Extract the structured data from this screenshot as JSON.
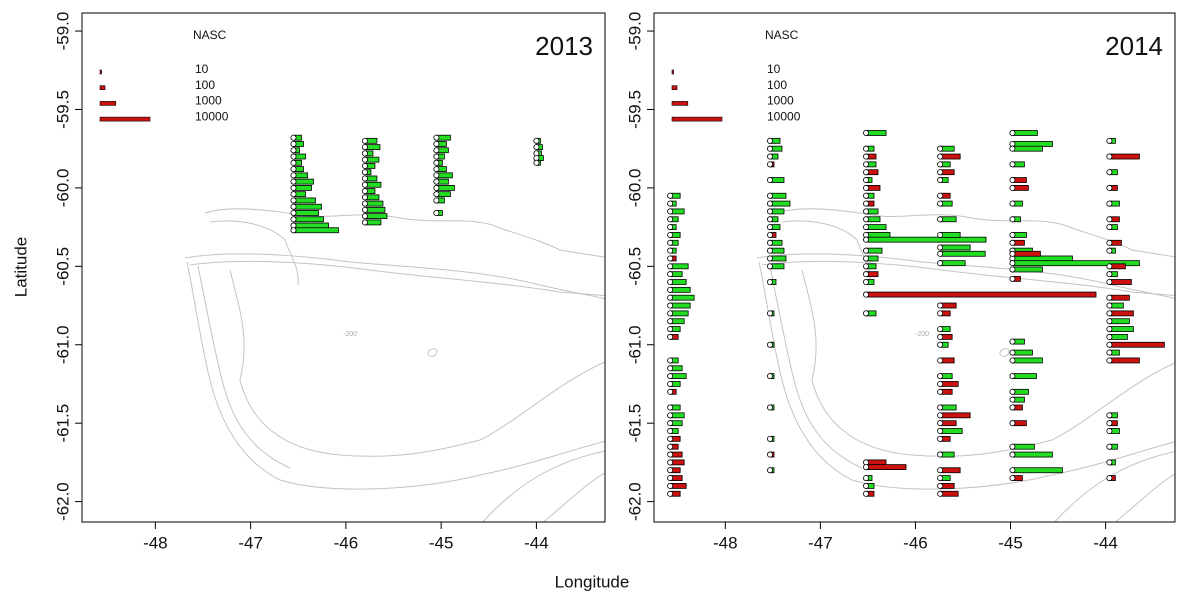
{
  "chart_data": [
    {
      "type": "transect-bar",
      "title": "2013",
      "ylabel": "Latitude",
      "xlabel": "Longitude",
      "contour_label": "-200",
      "xlim": [
        -48.77,
        -43.28
      ],
      "ylim": [
        -62.13,
        -58.885
      ],
      "xticks": [
        -48,
        -47,
        -46,
        -45,
        -44
      ],
      "yticks": [
        {
          "value": -59,
          "label": "-59.0"
        },
        -59.5,
        {
          "value": -60,
          "label": "-60.0"
        },
        -60.5,
        {
          "value": -61,
          "label": "-61.0"
        },
        -61.5,
        {
          "value": -62,
          "label": "-62.0"
        }
      ],
      "legend": {
        "title": "NASC",
        "values": [
          10,
          100,
          1000,
          10000
        ],
        "color": "#cc1111"
      },
      "transects": [
        {
          "lon": -46.55,
          "series": [
            {
              "color": "#22dd22",
              "lat": [
                -59.68,
                -59.72,
                -59.76,
                -59.8,
                -59.84,
                -59.88,
                -59.92,
                -59.96,
                -60.0,
                -60.04,
                -60.08,
                -60.12,
                -60.16,
                -60.2,
                -60.24,
                -60.27
              ],
              "values": [
                256,
                400,
                144,
                576,
                256,
                400,
                784,
                1600,
                1296,
                576,
                1936,
                3136,
                2500,
                3600,
                4900,
                8100
              ]
            }
          ]
        },
        {
          "lon": -45.8,
          "series": [
            {
              "color": "#22dd22",
              "lat": [
                -59.7,
                -59.74,
                -59.78,
                -59.82,
                -59.86,
                -59.9,
                -59.94,
                -59.98,
                -60.02,
                -60.06,
                -60.1,
                -60.14,
                -60.18,
                -60.22
              ],
              "values": [
                576,
                900,
                256,
                784,
                400,
                144,
                576,
                1024,
                400,
                784,
                1296,
                1600,
                1936,
                1024
              ]
            }
          ]
        },
        {
          "lon": -45.05,
          "series": [
            {
              "color": "#22dd22",
              "lat": [
                -59.68,
                -59.72,
                -59.76,
                -59.8,
                -59.84,
                -59.88,
                -59.92,
                -59.96,
                -60.0,
                -60.04,
                -60.08,
                -60.16
              ],
              "values": [
                784,
                400,
                576,
                256,
                144,
                400,
                1024,
                576,
                1296,
                784,
                256,
                144
              ]
            }
          ]
        },
        {
          "lon": -44.0,
          "series": [
            {
              "color": "#22dd22",
              "lat": [
                -59.7,
                -59.74,
                -59.78,
                -59.81,
                -59.84
              ],
              "values": [
                64,
                144,
                100,
                196,
                64
              ]
            }
          ]
        }
      ]
    },
    {
      "type": "transect-bar",
      "title": "2014",
      "contour_label": "-200",
      "xlim": [
        -48.75,
        -43.27
      ],
      "ylim": [
        -62.13,
        -58.885
      ],
      "xticks": [
        -48,
        -47,
        -46,
        -45,
        -44
      ],
      "yticks": [
        {
          "value": -59,
          "label": "-59.0"
        },
        -59.5,
        {
          "value": -60,
          "label": "-60.0"
        },
        -60.5,
        {
          "value": -61,
          "label": "-61.0"
        },
        -61.5,
        {
          "value": -62,
          "label": "-62.0"
        }
      ],
      "legend": {
        "title": "NASC",
        "values": [
          10,
          100,
          1000,
          10000
        ],
        "color": "#cc1111"
      },
      "transects": [
        {
          "lon": -48.58,
          "series": [
            {
              "color": "#22dd22",
              "lat": [
                -60.05,
                -60.1,
                -60.15,
                -60.2,
                -60.25,
                -60.3,
                -60.35,
                -60.4,
                -60.5,
                -60.55,
                -60.6,
                -60.65,
                -60.7,
                -60.75,
                -60.8,
                -60.85,
                -60.9,
                -61.1,
                -61.15,
                -61.2,
                -61.25,
                -61.4,
                -61.45,
                -61.5,
                -61.55
              ],
              "values": [
                400,
                144,
                784,
                256,
                144,
                400,
                256,
                144,
                1296,
                576,
                1024,
                1600,
                2304,
                1600,
                1296,
                784,
                400,
                256,
                576,
                1024,
                400,
                400,
                784,
                576,
                256
              ]
            },
            {
              "color": "#cc1111",
              "lat": [
                -60.45,
                -60.95,
                -61.3,
                -61.6,
                -61.65,
                -61.7,
                -61.75,
                -61.8,
                -61.85,
                -61.9,
                -61.95
              ],
              "values": [
                144,
                256,
                144,
                400,
                256,
                576,
                784,
                400,
                576,
                1024,
                400
              ]
            }
          ]
        },
        {
          "lon": -47.53,
          "series": [
            {
              "color": "#22dd22",
              "lat": [
                -59.7,
                -59.75,
                -59.8,
                -59.95,
                -60.05,
                -60.1,
                -60.15,
                -60.2,
                -60.25,
                -60.35,
                -60.4,
                -60.45,
                -60.5,
                -60.6,
                -60.8,
                -61.0,
                -61.2,
                -61.4,
                -61.6,
                -61.8
              ],
              "values": [
                400,
                576,
                256,
                784,
                1024,
                1600,
                784,
                256,
                400,
                576,
                784,
                1024,
                784,
                144,
                64,
                64,
                64,
                64,
                64,
                64
              ]
            },
            {
              "color": "#cc1111",
              "lat": [
                -59.85,
                -60.3,
                -61.7
              ],
              "values": [
                64,
                144,
                64
              ]
            }
          ]
        },
        {
          "lon": -46.52,
          "series": [
            {
              "color": "#22dd22",
              "lat": [
                -59.65,
                -59.75,
                -59.85,
                -59.95,
                -60.05,
                -60.15,
                -60.2,
                -60.25,
                -60.3,
                -60.33,
                -60.4,
                -60.45,
                -60.5,
                -60.6,
                -60.8,
                -61.85,
                -61.9
              ],
              "values": [
                1600,
                256,
                400,
                144,
                256,
                576,
                784,
                1600,
                2304,
                57600,
                1024,
                576,
                400,
                256,
                400,
                144,
                256
              ]
            },
            {
              "color": "#cc1111",
              "lat": [
                -59.8,
                -59.9,
                -60.0,
                -60.1,
                -60.55,
                -60.68,
                -61.75,
                -61.78,
                -61.95
              ],
              "values": [
                400,
                576,
                784,
                256,
                576,
                211600,
                1600,
                6400,
                256
              ]
            }
          ]
        },
        {
          "lon": -45.74,
          "series": [
            {
              "color": "#22dd22",
              "lat": [
                -59.75,
                -59.85,
                -59.95,
                -60.1,
                -60.2,
                -60.3,
                -60.38,
                -60.42,
                -60.48,
                -60.9,
                -61.0,
                -61.2,
                -61.4,
                -61.55,
                -61.7,
                -61.85
              ],
              "values": [
                784,
                400,
                256,
                576,
                1024,
                1600,
                3600,
                8100,
                2500,
                400,
                256,
                576,
                1024,
                1936,
                784,
                400
              ]
            },
            {
              "color": "#cc1111",
              "lat": [
                -59.8,
                -59.9,
                -60.05,
                -60.75,
                -60.8,
                -60.95,
                -61.1,
                -61.25,
                -61.3,
                -61.45,
                -61.5,
                -61.6,
                -61.8,
                -61.9,
                -61.95
              ],
              "values": [
                1600,
                784,
                400,
                1024,
                400,
                576,
                784,
                1296,
                576,
                3600,
                1024,
                400,
                1600,
                784,
                1296
              ]
            }
          ]
        },
        {
          "lon": -44.98,
          "series": [
            {
              "color": "#22dd22",
              "lat": [
                -59.65,
                -59.72,
                -59.75,
                -59.85,
                -60.1,
                -60.2,
                -60.3,
                -60.4,
                -60.45,
                -60.48,
                -60.52,
                -60.98,
                -61.05,
                -61.1,
                -61.2,
                -61.3,
                -61.35,
                -61.65,
                -61.7,
                -61.8
              ],
              "values": [
                2500,
                6400,
                3600,
                576,
                400,
                256,
                784,
                1600,
                14400,
                64516,
                3600,
                576,
                1600,
                3600,
                2304,
                1024,
                576,
                1936,
                6400,
                10000
              ]
            },
            {
              "color": "#cc1111",
              "lat": [
                -59.95,
                -60.0,
                -60.35,
                -60.42,
                -60.58,
                -61.4,
                -61.5,
                -61.85
              ],
              "values": [
                784,
                1024,
                576,
                3136,
                256,
                400,
                784,
                400
              ]
            }
          ]
        },
        {
          "lon": -43.96,
          "series": [
            {
              "color": "#22dd22",
              "lat": [
                -59.7,
                -59.9,
                -60.1,
                -60.25,
                -60.4,
                -60.55,
                -60.75,
                -60.85,
                -60.9,
                -60.95,
                -61.05,
                -61.45,
                -61.55,
                -61.65,
                -61.75
              ],
              "values": [
                144,
                256,
                400,
                256,
                144,
                256,
                784,
                1600,
                2304,
                1296,
                400,
                256,
                400,
                256,
                144
              ]
            },
            {
              "color": "#cc1111",
              "lat": [
                -59.8,
                -60.0,
                -60.2,
                -60.35,
                -60.5,
                -60.6,
                -60.7,
                -60.8,
                -61.0,
                -61.1,
                -61.5,
                -61.85
              ],
              "values": [
                3600,
                256,
                400,
                576,
                1024,
                1936,
                1600,
                2304,
                12100,
                3600,
                256,
                144
              ]
            }
          ]
        }
      ]
    }
  ]
}
